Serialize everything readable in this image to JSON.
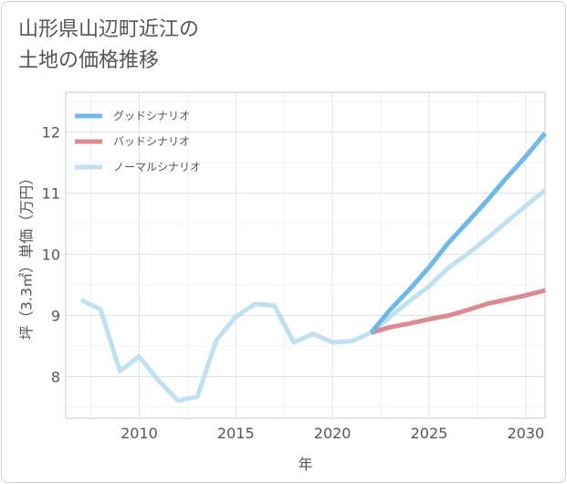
{
  "title_lines": [
    "山形県山辺町近江の",
    "土地の価格推移"
  ],
  "chart_data": {
    "type": "line",
    "title": "山形県山辺町近江の土地の価格推移",
    "xlabel": "年",
    "ylabel": "坪（3.3㎡）単価（万円）",
    "xlim": [
      2006.2,
      2031
    ],
    "ylim": [
      7.32,
      12.65
    ],
    "xticks": [
      2010,
      2015,
      2020,
      2025,
      2030
    ],
    "yticks": [
      8,
      9,
      10,
      11,
      12
    ],
    "grid": true,
    "legend_position": "top-left",
    "series": [
      {
        "name": "グッドシナリオ",
        "color": "#6cb9ea",
        "x": [
          2022,
          2023,
          2024,
          2025,
          2026,
          2027,
          2028,
          2029,
          2030,
          2031
        ],
        "values": [
          8.72,
          9.1,
          9.43,
          9.79,
          10.19,
          10.53,
          10.88,
          11.25,
          11.6,
          11.98
        ]
      },
      {
        "name": "バッドシナリオ",
        "color": "#dd8990",
        "x": [
          2022,
          2023,
          2024,
          2025,
          2026,
          2027,
          2028,
          2029,
          2030,
          2031
        ],
        "values": [
          8.72,
          8.81,
          8.87,
          8.94,
          9.0,
          9.09,
          9.19,
          9.26,
          9.33,
          9.41
        ]
      },
      {
        "name": "ノーマルシナリオ",
        "color": "#bfe0f0",
        "x": [
          2007,
          2008,
          2009,
          2010,
          2011,
          2012,
          2013,
          2014,
          2015,
          2016,
          2017,
          2018,
          2019,
          2020,
          2021,
          2022,
          2023,
          2024,
          2025,
          2026,
          2027,
          2028,
          2029,
          2030,
          2031
        ],
        "values": [
          9.25,
          9.1,
          8.09,
          8.33,
          7.94,
          7.61,
          7.67,
          8.6,
          8.98,
          9.19,
          9.16,
          8.56,
          8.7,
          8.56,
          8.58,
          8.72,
          8.98,
          9.24,
          9.48,
          9.78,
          10.01,
          10.26,
          10.53,
          10.79,
          11.05
        ]
      }
    ]
  }
}
